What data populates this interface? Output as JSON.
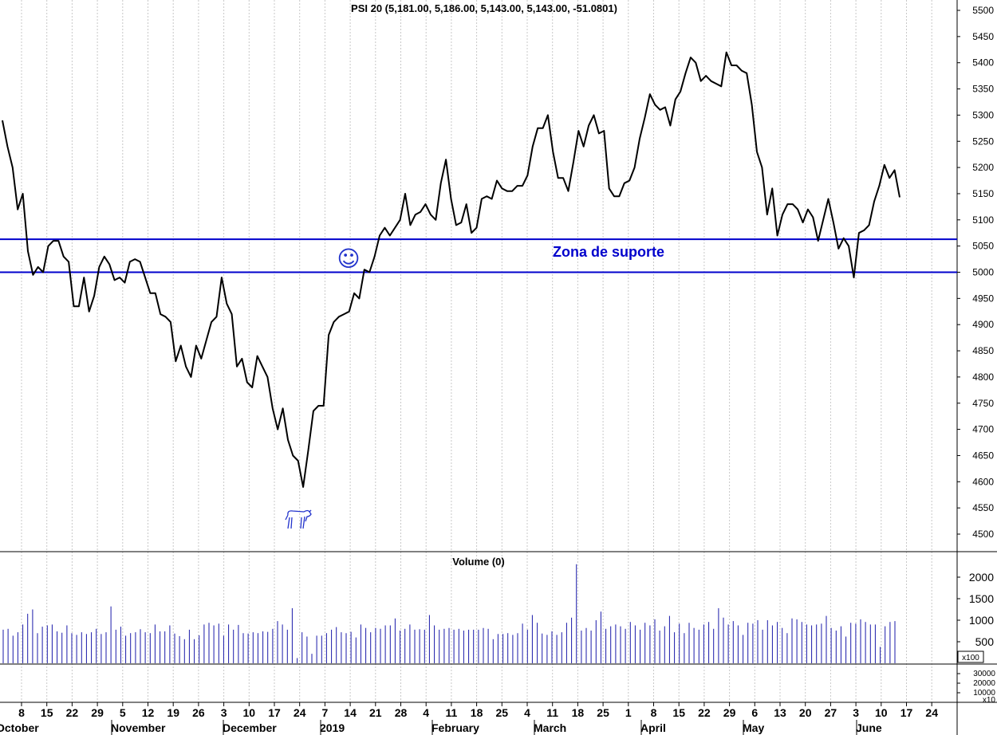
{
  "chart_data": {
    "type": "line",
    "title": "PSI 20 (5,181.00, 5,186.00, 5,143.00, 5,143.00, -51.0801)",
    "price_axis": {
      "ylim": [
        4450,
        5520
      ],
      "ticks": [
        "5500",
        "5450",
        "5400",
        "5350",
        "5300",
        "5250",
        "5200",
        "5150",
        "5100",
        "5050",
        "5000",
        "4950",
        "4900",
        "4850",
        "4800",
        "4750",
        "4700",
        "4650",
        "4600",
        "4550",
        "4500"
      ]
    },
    "series": [
      {
        "values": [
          5290,
          5240,
          5200,
          5120,
          5150,
          5040,
          4995,
          5010,
          5000,
          5050,
          5060,
          5060,
          5030,
          5020,
          4935,
          4935,
          4990,
          4925,
          4955,
          5010,
          5030,
          5015,
          4985,
          4990,
          4980,
          5020,
          5025,
          5020,
          4990,
          4960,
          4960,
          4920,
          4915,
          4905,
          4830,
          4860,
          4820,
          4800,
          4860,
          4835,
          4870,
          4905,
          4915,
          4990,
          4940,
          4920,
          4820,
          4835,
          4790,
          4780,
          4840,
          4820,
          4800,
          4740,
          4700,
          4740,
          4680,
          4650,
          4640,
          4590,
          4660,
          4735,
          4745,
          4745,
          4880,
          4905,
          4915,
          4920,
          4925,
          4960,
          4950,
          5005,
          5000,
          5030,
          5070,
          5085,
          5070,
          5085,
          5100,
          5150,
          5090,
          5110,
          5115,
          5130,
          5110,
          5100,
          5170,
          5215,
          5140,
          5090,
          5095,
          5130,
          5075,
          5085,
          5140,
          5145,
          5140,
          5175,
          5160,
          5155,
          5155,
          5165,
          5165,
          5185,
          5240,
          5275,
          5275,
          5300,
          5230,
          5180,
          5180,
          5155,
          5210,
          5270,
          5240,
          5280,
          5300,
          5265,
          5270,
          5160,
          5145,
          5145,
          5170,
          5175,
          5200,
          5255,
          5295,
          5340,
          5320,
          5310,
          5315,
          5280,
          5330,
          5345,
          5380,
          5410,
          5400,
          5365,
          5375,
          5365,
          5360,
          5355,
          5420,
          5395,
          5395,
          5385,
          5380,
          5320,
          5230,
          5200,
          5110,
          5160,
          5070,
          5110,
          5130,
          5130,
          5120,
          5095,
          5120,
          5105,
          5060,
          5100,
          5140,
          5095,
          5045,
          5065,
          5050,
          4990,
          5075,
          5080,
          5090,
          5135,
          5165,
          5205,
          5180,
          5195,
          5143
        ]
      }
    ],
    "date_ticks": [
      "8",
      "15",
      "22",
      "29",
      "5",
      "12",
      "19",
      "26",
      "3",
      "10",
      "17",
      "24",
      "7",
      "14",
      "21",
      "28",
      "4",
      "11",
      "18",
      "25",
      "4",
      "11",
      "18",
      "25",
      "1",
      "8",
      "15",
      "22",
      "29",
      "6",
      "13",
      "20",
      "27",
      "3",
      "10",
      "17",
      "24"
    ],
    "months": [
      "October",
      "November",
      "December",
      "2019",
      "February",
      "March",
      "April",
      "May",
      "June"
    ],
    "annotations": {
      "support_zone_label": "Zona de suporte",
      "support_upper": 5063,
      "support_lower": 5000,
      "smiley": "☺",
      "bull_icon": "bull-icon"
    },
    "volume": {
      "title": "Volume (0)",
      "ticks": [
        "2000",
        "1500",
        "1000",
        "500"
      ],
      "unit_label": "x100",
      "ylim": [
        0,
        2300
      ],
      "values": [
        780,
        800,
        640,
        720,
        900,
        1150,
        1250,
        700,
        850,
        880,
        900,
        740,
        710,
        880,
        700,
        660,
        720,
        680,
        720,
        800,
        680,
        720,
        1320,
        780,
        850,
        640,
        700,
        720,
        790,
        720,
        700,
        900,
        740,
        740,
        880,
        690,
        630,
        560,
        780,
        560,
        650,
        900,
        940,
        880,
        920,
        640,
        900,
        780,
        890,
        700,
        690,
        720,
        700,
        740,
        730,
        800,
        980,
        900,
        780,
        1280,
        120,
        720,
        620,
        220,
        640,
        640,
        700,
        780,
        840,
        720,
        700,
        730,
        600,
        900,
        820,
        720,
        820,
        800,
        880,
        880,
        1040,
        760,
        800,
        900,
        780,
        790,
        780,
        1120,
        880,
        780,
        800,
        820,
        780,
        800,
        760,
        780,
        780,
        780,
        820,
        800,
        560,
        680,
        680,
        700,
        660,
        700,
        920,
        780,
        1120,
        940,
        690,
        660,
        740,
        660,
        720,
        940,
        1060,
        2300,
        760,
        820,
        760,
        1000,
        1200,
        800,
        860,
        900,
        860,
        800,
        960,
        880,
        780,
        940,
        880,
        1020,
        760,
        860,
        1100,
        720,
        920,
        700,
        940,
        820,
        780,
        900,
        960,
        800,
        1280,
        1060,
        900,
        980,
        880,
        660,
        940,
        920,
        1000,
        780,
        1000,
        880,
        960,
        820,
        700,
        1040,
        1020,
        960,
        900,
        880,
        900,
        920,
        1100,
        820,
        760,
        860,
        620,
        940,
        920,
        1020,
        960,
        900,
        900,
        380,
        860,
        960,
        980
      ]
    },
    "lower_panel": {
      "ticks": [
        "30000",
        "20000",
        "10000"
      ],
      "unit_label": "x10"
    }
  }
}
